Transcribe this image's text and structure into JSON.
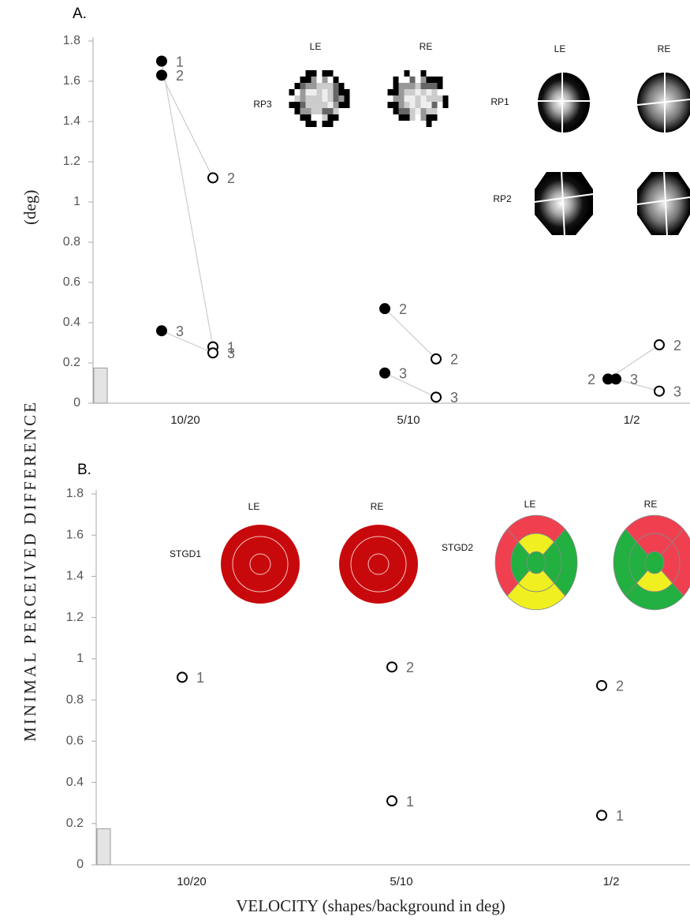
{
  "chart_data": [
    {
      "type": "scatter",
      "panel_label": "A.",
      "categories": [
        "10/20",
        "5/10",
        "1/2"
      ],
      "ylim": [
        0,
        1.8
      ],
      "yticks": [
        0,
        0.2,
        0.4,
        0.6,
        0.8,
        1,
        1.2,
        1.4,
        1.6,
        1.8
      ],
      "y_label": "MINIMAL PERCEIVED DIFFERENCE",
      "y_unit": "(deg)",
      "reference_bar": 0.175,
      "points": [
        {
          "category": 0,
          "marker": "filled",
          "value": 1.7,
          "label": "1"
        },
        {
          "category": 0,
          "marker": "filled",
          "value": 1.63,
          "label": "2"
        },
        {
          "category": 0,
          "marker": "filled",
          "value": 0.36,
          "label": "3"
        },
        {
          "category": 0,
          "marker": "open",
          "value": 1.12,
          "label": "2"
        },
        {
          "category": 0,
          "marker": "open",
          "value": 0.28,
          "label": "1"
        },
        {
          "category": 0,
          "marker": "open",
          "value": 0.25,
          "label": "3"
        },
        {
          "category": 1,
          "marker": "filled",
          "value": 0.47,
          "label": "2"
        },
        {
          "category": 1,
          "marker": "filled",
          "value": 0.15,
          "label": "3"
        },
        {
          "category": 1,
          "marker": "open",
          "value": 0.22,
          "label": "2"
        },
        {
          "category": 1,
          "marker": "open",
          "value": 0.03,
          "label": "3"
        },
        {
          "category": 2,
          "marker": "filled",
          "value": 0.12,
          "label": "2"
        },
        {
          "category": 2,
          "marker": "filled",
          "value": 0.12,
          "label": "3"
        },
        {
          "category": 2,
          "marker": "open",
          "value": 0.29,
          "label": "2"
        },
        {
          "category": 2,
          "marker": "open",
          "value": 0.06,
          "label": "3"
        }
      ],
      "inset_labels": {
        "rows": [
          "RP3",
          "RP1",
          "RP2"
        ],
        "eyes": [
          "LE",
          "RE",
          "LE",
          "RE"
        ]
      }
    },
    {
      "type": "scatter",
      "panel_label": "B.",
      "categories": [
        "10/20",
        "5/10",
        "1/2"
      ],
      "ylim": [
        0,
        1.8
      ],
      "yticks": [
        0,
        0.2,
        0.4,
        0.6,
        0.8,
        1,
        1.2,
        1.4,
        1.6,
        1.8
      ],
      "x_label": "VELOCITY (shapes/background in deg)",
      "reference_bar": 0.175,
      "points": [
        {
          "category": 0,
          "marker": "open",
          "value": 0.91,
          "label": "1"
        },
        {
          "category": 1,
          "marker": "open",
          "value": 0.96,
          "label": "2"
        },
        {
          "category": 1,
          "marker": "open",
          "value": 0.31,
          "label": "1"
        },
        {
          "category": 2,
          "marker": "open",
          "value": 0.87,
          "label": "2"
        },
        {
          "category": 2,
          "marker": "open",
          "value": 0.24,
          "label": "1"
        }
      ],
      "inset_labels": {
        "rows": [
          "STGD1",
          "STGD2"
        ],
        "eyes": [
          "LE",
          "RE",
          "LE",
          "RE"
        ]
      }
    }
  ]
}
